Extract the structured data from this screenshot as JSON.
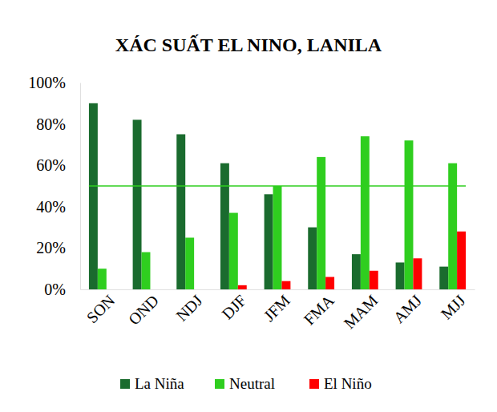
{
  "chart_data": {
    "type": "bar",
    "title": "XÁC SUẤT EL NINO, LANILA",
    "categories": [
      "SON",
      "OND",
      "NDJ",
      "DJF",
      "JFM",
      "FMA",
      "MAM",
      "AMJ",
      "MJJ"
    ],
    "series": [
      {
        "name": "La Niña",
        "color": "#1a6b2e",
        "values": [
          90,
          82,
          75,
          61,
          46,
          30,
          17,
          13,
          11
        ]
      },
      {
        "name": "Neutral",
        "color": "#2fce1f",
        "values": [
          10,
          18,
          25,
          37,
          50,
          64,
          74,
          72,
          61
        ]
      },
      {
        "name": "El Niño",
        "color": "#ff0000",
        "values": [
          0,
          0,
          0,
          2,
          4,
          6,
          9,
          15,
          28
        ]
      }
    ],
    "reference_line": 50,
    "ylim": [
      0,
      100
    ],
    "yticks": [
      {
        "value": 0,
        "label": "0%"
      },
      {
        "value": 20,
        "label": "20%"
      },
      {
        "value": 40,
        "label": "40%"
      },
      {
        "value": 60,
        "label": "60%"
      },
      {
        "value": 80,
        "label": "80%"
      },
      {
        "value": 100,
        "label": "100%"
      }
    ],
    "grid": false,
    "legend": "bottom"
  }
}
